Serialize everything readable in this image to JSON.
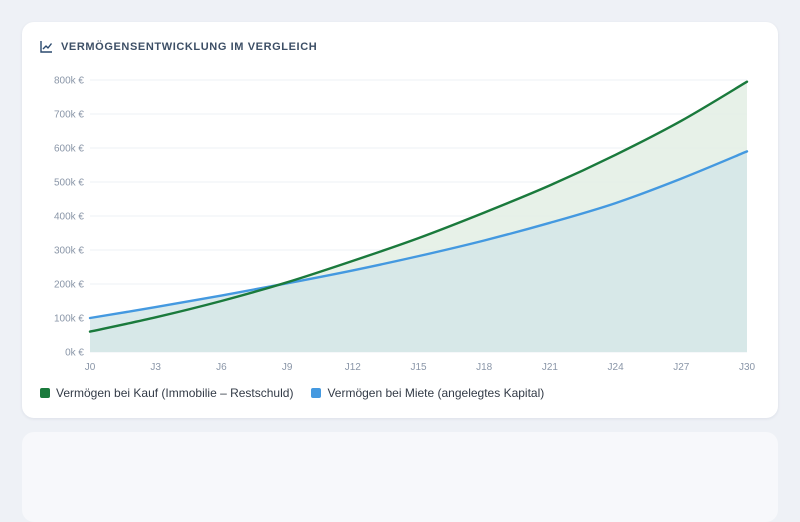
{
  "card": {
    "title": "VERMÖGENSENTWICKLUNG IM VERGLEICH",
    "icon": "line-chart-icon"
  },
  "colors": {
    "kauf": "#1a7a3c",
    "miete": "#4499e0",
    "kauf_fill": "#e4f0e6",
    "miete_fill": "#d3e6e8",
    "grid": "#eef0f4",
    "background": "#eef1f6"
  },
  "legend": {
    "kauf": "Vermögen bei Kauf (Immobilie – Restschuld)",
    "miete": "Vermögen bei Miete (angelegtes Kapital)"
  },
  "chart_data": {
    "type": "area",
    "title": "VERMÖGENSENTWICKLUNG IM VERGLEICH",
    "xlabel": "",
    "ylabel": "",
    "x": [
      0,
      3,
      6,
      9,
      12,
      15,
      18,
      21,
      24,
      27,
      30
    ],
    "x_tick_labels": [
      "J0",
      "J3",
      "J6",
      "J9",
      "J12",
      "J15",
      "J18",
      "J21",
      "J24",
      "J27",
      "J30"
    ],
    "y_tick_labels": [
      "0k €",
      "100k €",
      "200k €",
      "300k €",
      "400k €",
      "500k €",
      "600k €",
      "700k €",
      "800k €"
    ],
    "ylim": [
      0,
      800000
    ],
    "xlim": [
      0,
      30
    ],
    "grid": true,
    "legend_position": "bottom-left",
    "series": [
      {
        "name": "Vermögen bei Kauf (Immobilie – Restschuld)",
        "color": "#1a7a3c",
        "values": [
          60000,
          102000,
          150000,
          205000,
          268000,
          335000,
          410000,
          490000,
          580000,
          680000,
          795000
        ]
      },
      {
        "name": "Vermögen bei Miete (angelegtes Kapital)",
        "color": "#4499e0",
        "values": [
          100000,
          132000,
          166000,
          202000,
          240000,
          282000,
          328000,
          380000,
          438000,
          510000,
          590000
        ]
      }
    ]
  }
}
